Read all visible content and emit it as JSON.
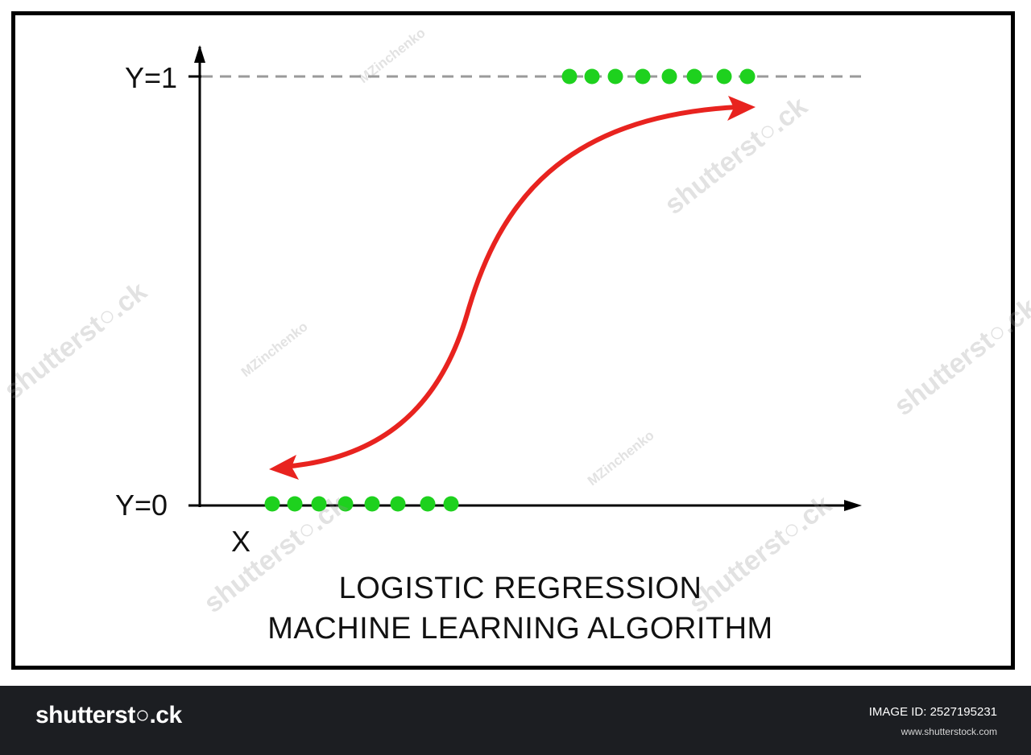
{
  "diagram": {
    "y_top_label": "Y=1",
    "y_bottom_label": "Y=0",
    "x_label": "X",
    "caption_line1": "LOGISTIC REGRESSION",
    "caption_line2": "MACHINE LEARNING ALGORITHM",
    "colors": {
      "curve": "#e8231f",
      "points": "#1ed11e",
      "axes": "#000000",
      "dashed_line": "#9a9a9a",
      "footer_background": "#1c1e22"
    },
    "y1_point_count": 8,
    "y0_point_count": 8
  },
  "watermarks": {
    "author": "MZinchenko",
    "site": "shutterst○.ck"
  },
  "footer": {
    "brand": "shutterst○.ck",
    "image_id": "IMAGE ID: 2527195231",
    "website": "www.shutterstock.com"
  }
}
